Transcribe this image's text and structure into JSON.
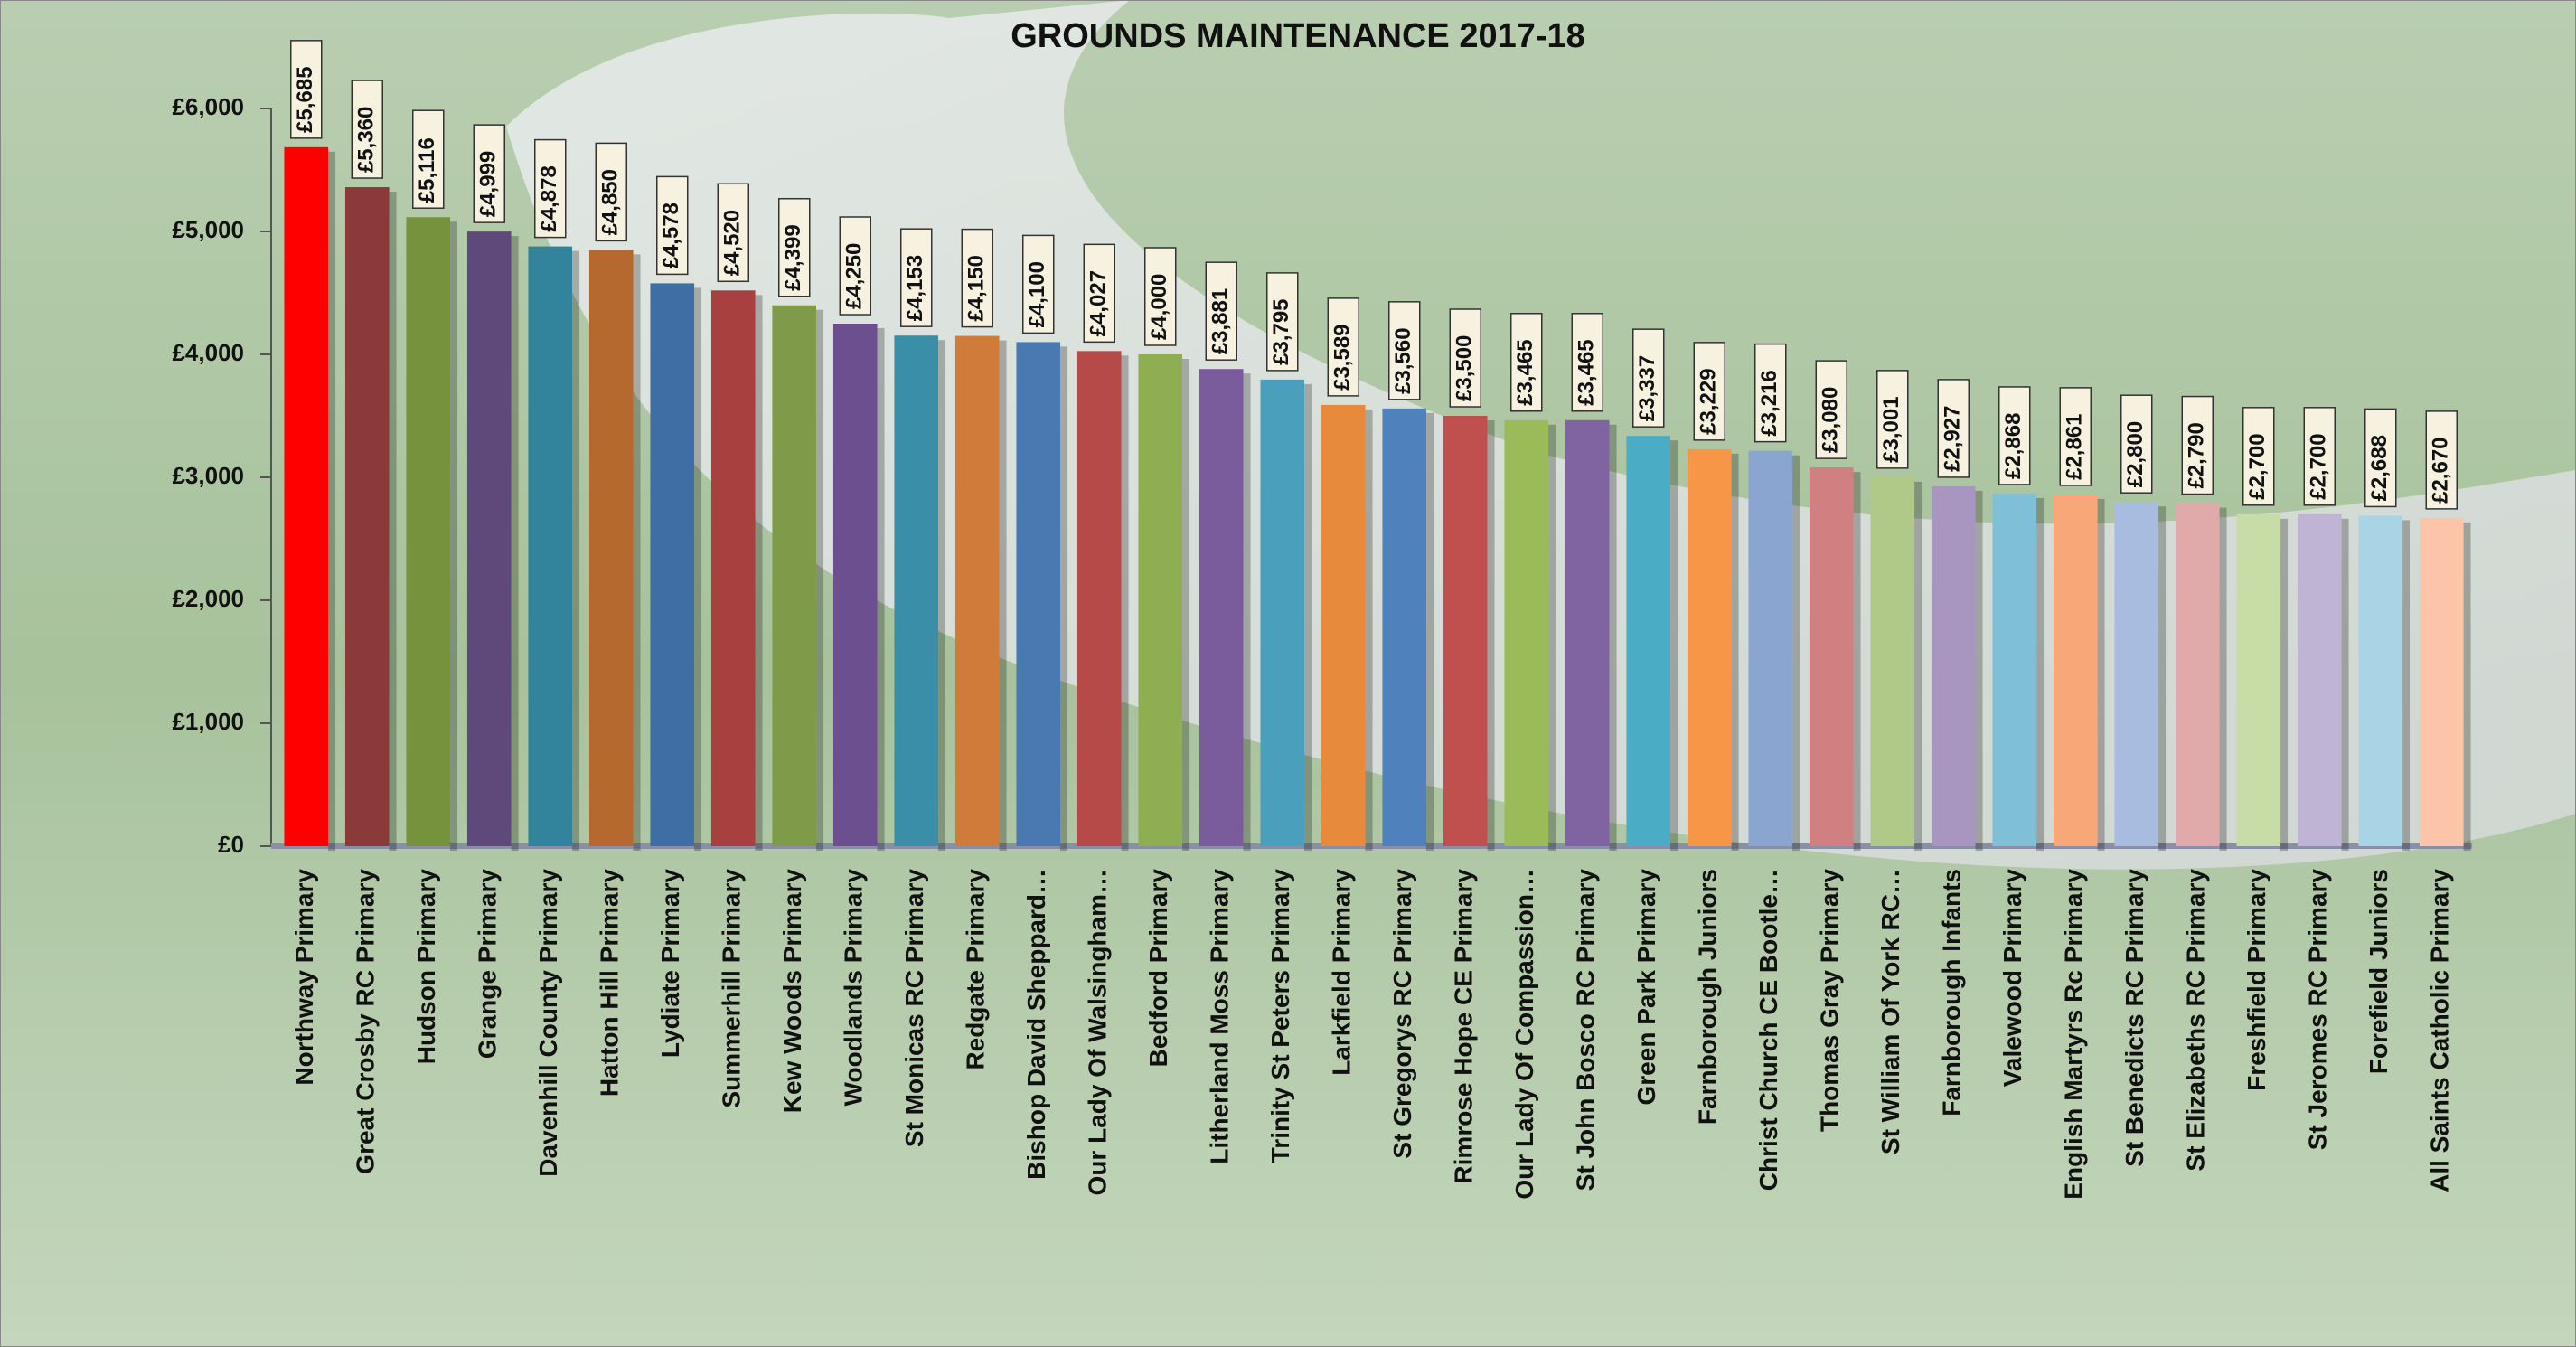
{
  "chart_data": {
    "type": "bar",
    "title": "GROUNDS MAINTENANCE 2017-18",
    "categories": [
      "Northway Primary",
      "Great Crosby RC Primary",
      "Hudson Primary",
      "Grange Primary",
      "Davenhill County Primary",
      "Hatton Hill Primary",
      "Lydiate Primary",
      "Summerhill Primary",
      "Kew Woods Primary",
      "Woodlands Primary",
      "St Monicas RC Primary",
      "Redgate Primary",
      "Bishop David Sheppard…",
      "Our Lady Of Walsingham…",
      "Bedford Primary",
      "Litherland Moss Primary",
      "Trinity St Peters Primary",
      "Larkfield Primary",
      "St Gregorys RC Primary",
      "Rimrose Hope CE Primary",
      "Our Lady Of Compassion…",
      "St John Bosco RC Primary",
      "Green Park Primary",
      "Farnborough Juniors",
      "Christ Church CE Bootle…",
      "Thomas Gray Primary",
      "St William Of York RC…",
      "Farnborough Infants",
      "Valewood Primary",
      "English Martyrs Rc Primary",
      "St Benedicts RC Primary",
      "St Elizabeths RC Primary",
      "Freshfield Primary",
      "St Jeromes RC Primary",
      "Forefield Juniors",
      "All Saints Catholic Primary"
    ],
    "values": [
      5685,
      5360,
      5116,
      4999,
      4878,
      4850,
      4578,
      4520,
      4399,
      4250,
      4153,
      4150,
      4100,
      4027,
      4000,
      3881,
      3795,
      3589,
      3560,
      3500,
      3465,
      3465,
      3337,
      3229,
      3216,
      3080,
      3001,
      2927,
      2868,
      2861,
      2800,
      2790,
      2700,
      2700,
      2688,
      2670
    ],
    "value_labels": [
      "£5,685",
      "£5,360",
      "£5,116",
      "£4,999",
      "£4,878",
      "£4,850",
      "£4,578",
      "£4,520",
      "£4,399",
      "£4,250",
      "£4,153",
      "£4,150",
      "£4,100",
      "£4,027",
      "£4,000",
      "£3,881",
      "£3,795",
      "£3,589",
      "£3,560",
      "£3,500",
      "£3,465",
      "£3,465",
      "£3,337",
      "£3,229",
      "£3,216",
      "£3,080",
      "£3,001",
      "£2,927",
      "£2,868",
      "£2,861",
      "£2,800",
      "£2,790",
      "£2,700",
      "£2,700",
      "£2,688",
      "£2,670"
    ],
    "colors": [
      "#ff0000",
      "#8b3a3a",
      "#76923c",
      "#5f497a",
      "#31849b",
      "#b5692e",
      "#3f6ea5",
      "#a84040",
      "#7f9a48",
      "#6b4f8e",
      "#3a8ea8",
      "#d07b3a",
      "#4a78b0",
      "#b54a48",
      "#8fae52",
      "#7a5c9c",
      "#4aa0bc",
      "#e88a3c",
      "#4f81bd",
      "#c0504d",
      "#9bbb59",
      "#8064a2",
      "#4bacc6",
      "#f79646",
      "#8aa6d0",
      "#d08080",
      "#b0c888",
      "#a896c0",
      "#80c0d6",
      "#f8a878",
      "#a8bce0",
      "#e0aaaa",
      "#c8dca8",
      "#c0b4d4",
      "#a8d4e6",
      "#fcc4a8"
    ],
    "ylim": [
      0,
      6000
    ],
    "yticks": [
      {
        "value": 0,
        "label": "£0"
      },
      {
        "value": 1000,
        "label": "£1,000"
      },
      {
        "value": 2000,
        "label": "£2,000"
      },
      {
        "value": 3000,
        "label": "£3,000"
      },
      {
        "value": 4000,
        "label": "£4,000"
      },
      {
        "value": 5000,
        "label": "£5,000"
      },
      {
        "value": 6000,
        "label": "£6,000"
      }
    ],
    "grid": false
  }
}
